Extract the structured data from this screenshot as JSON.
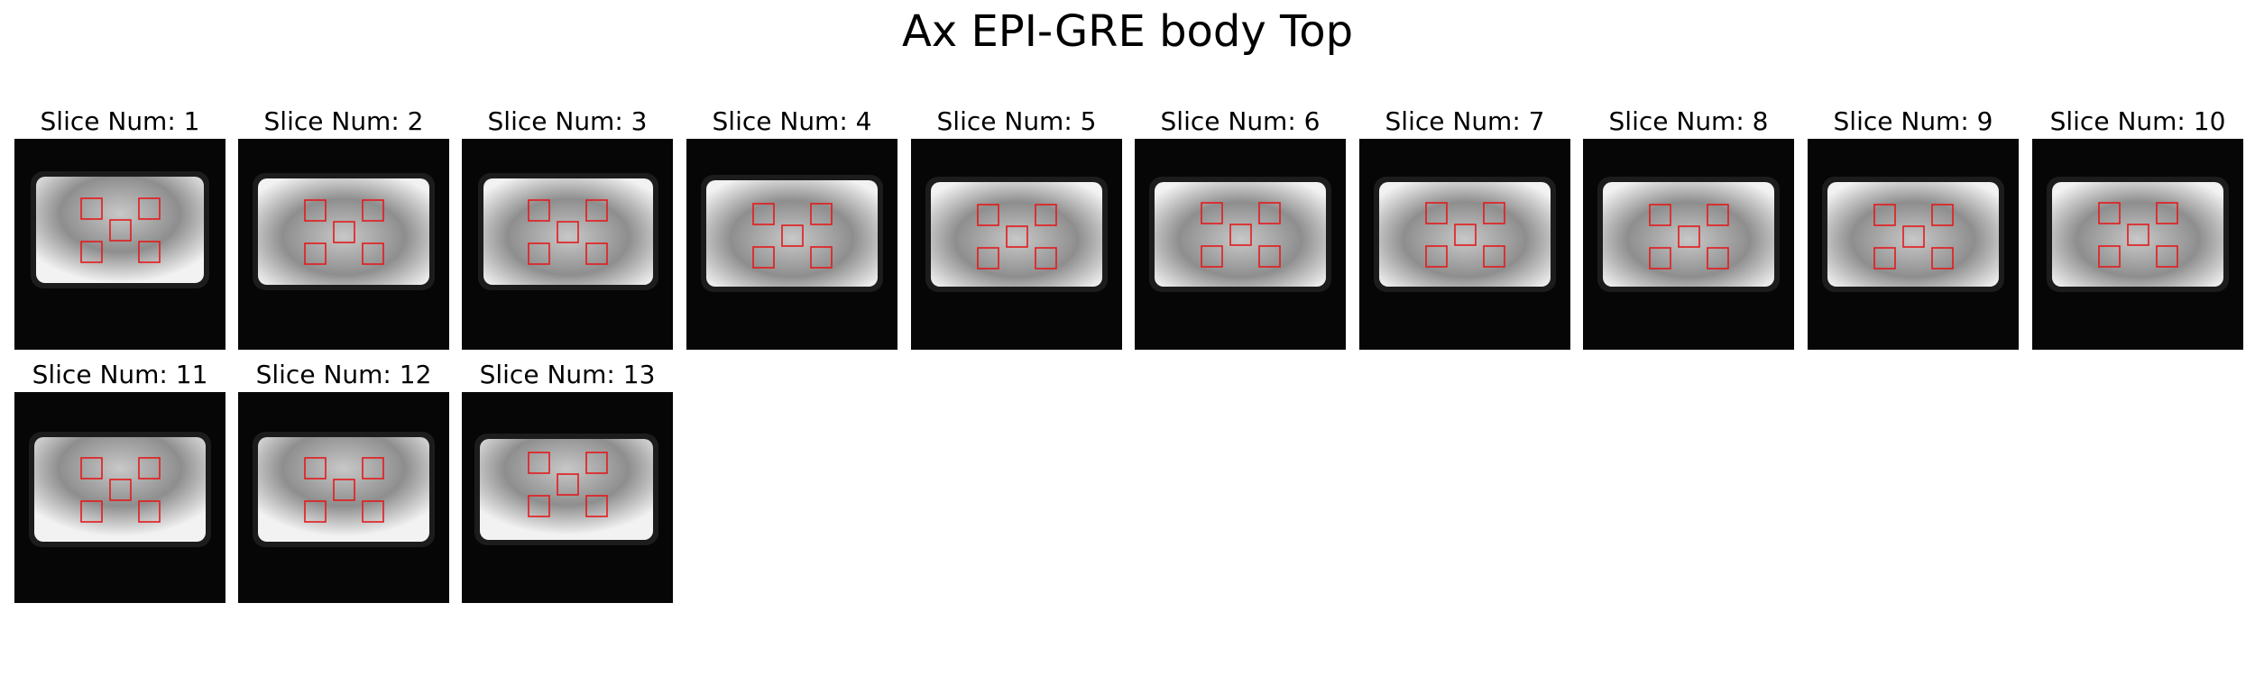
{
  "figure": {
    "title": "Ax EPI-GRE body Top"
  },
  "colors": {
    "background": "#ffffff",
    "image_background": "#050505",
    "roi_outline": "#e41a1c"
  },
  "slices": [
    {
      "title": "Slice Num: 1"
    },
    {
      "title": "Slice Num: 2"
    },
    {
      "title": "Slice Num: 3"
    },
    {
      "title": "Slice Num: 4"
    },
    {
      "title": "Slice Num: 5"
    },
    {
      "title": "Slice Num: 6"
    },
    {
      "title": "Slice Num: 7"
    },
    {
      "title": "Slice Num: 8"
    },
    {
      "title": "Slice Num: 9"
    },
    {
      "title": "Slice Num: 10"
    },
    {
      "title": "Slice Num: 11"
    },
    {
      "title": "Slice Num: 12"
    },
    {
      "title": "Slice Num: 13"
    }
  ]
}
